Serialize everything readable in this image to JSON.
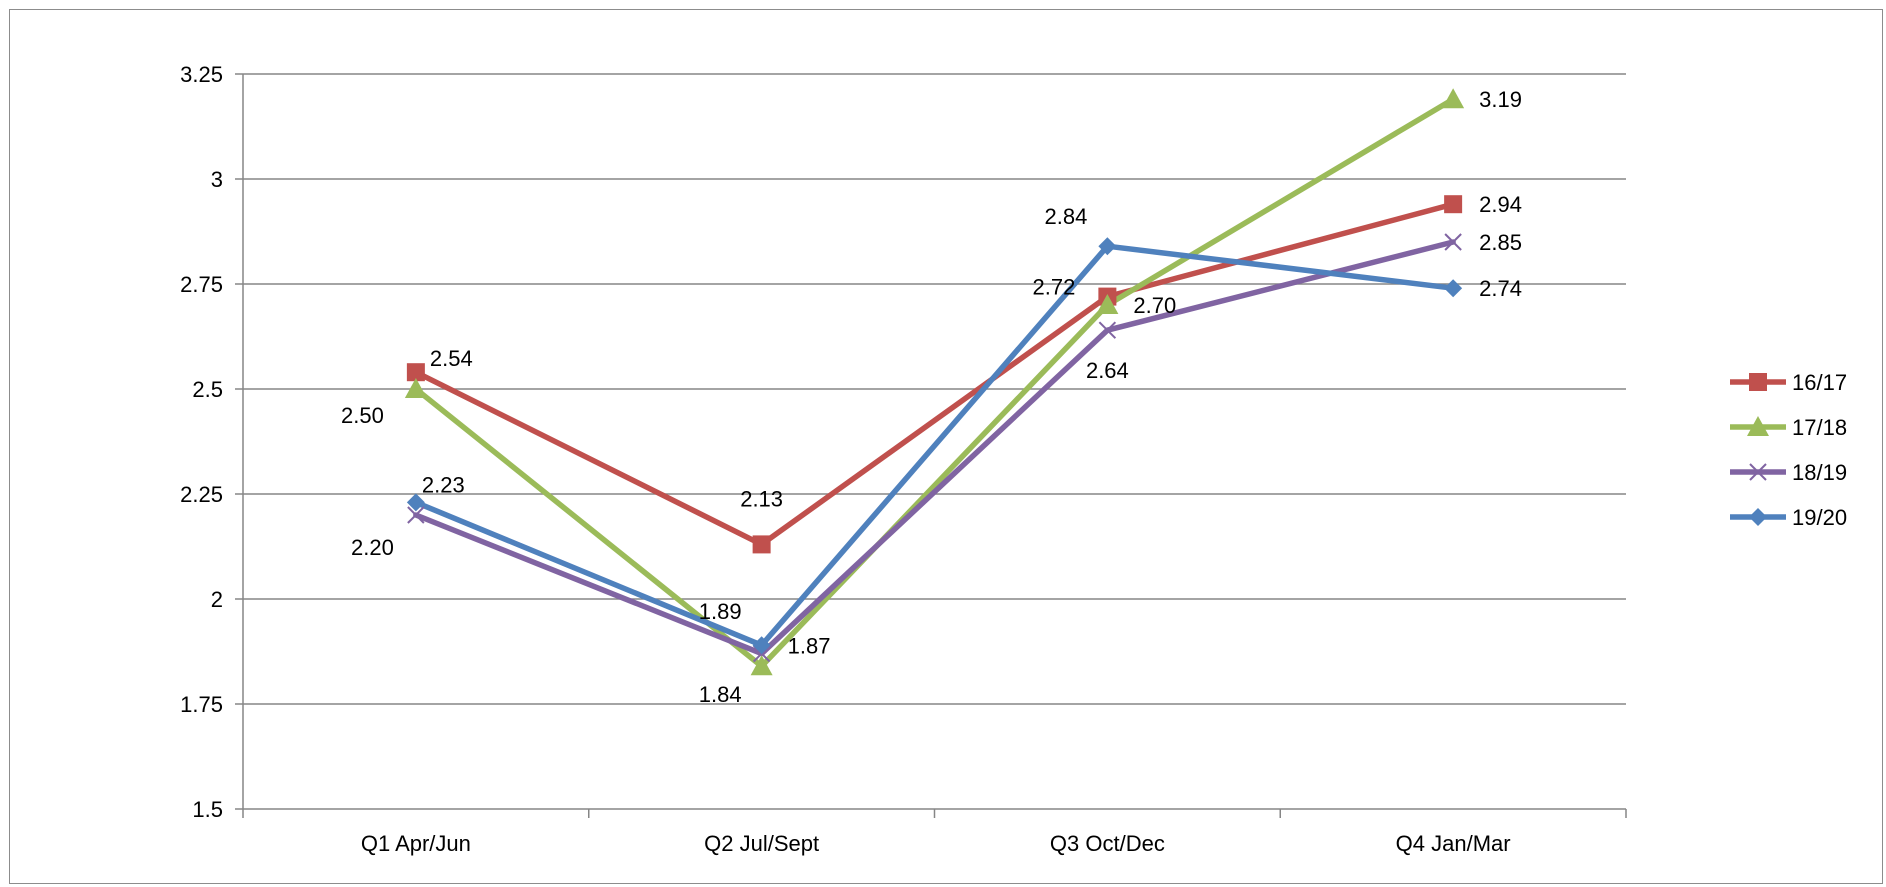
{
  "chart_data": {
    "type": "line",
    "title": "",
    "xlabel": "",
    "ylabel": "",
    "categories": [
      "Q1 Apr/Jun",
      "Q2 Jul/Sept",
      "Q3 Oct/Dec",
      "Q4 Jan/Mar"
    ],
    "ylim": [
      1.5,
      3.25
    ],
    "yticks": [
      "1.5",
      "1.75",
      "2",
      "2.25",
      "2.5",
      "2.75",
      "3",
      "3.25"
    ],
    "grid": true,
    "legend_position": "right",
    "series": [
      {
        "name": "16/17",
        "color": "#c0504d",
        "marker": "square",
        "values": [
          2.54,
          2.13,
          2.72,
          2.94
        ],
        "labels": [
          "2.54",
          "2.13",
          "2.72",
          "2.94"
        ]
      },
      {
        "name": "17/18",
        "color": "#9bbb59",
        "marker": "triangle",
        "values": [
          2.5,
          1.84,
          2.7,
          3.19
        ],
        "labels": [
          "2.50",
          "1.84",
          "2.70",
          "3.19"
        ]
      },
      {
        "name": "18/19",
        "color": "#8064a2",
        "marker": "x",
        "values": [
          2.2,
          1.87,
          2.64,
          2.85
        ],
        "labels": [
          "2.20",
          "1.87",
          "2.64",
          "2.85"
        ]
      },
      {
        "name": "19/20",
        "color": "#4f81bd",
        "marker": "diamond",
        "values": [
          2.23,
          1.89,
          2.84,
          2.74
        ],
        "labels": [
          "2.23",
          "1.89",
          "2.84",
          "2.74"
        ]
      }
    ]
  }
}
